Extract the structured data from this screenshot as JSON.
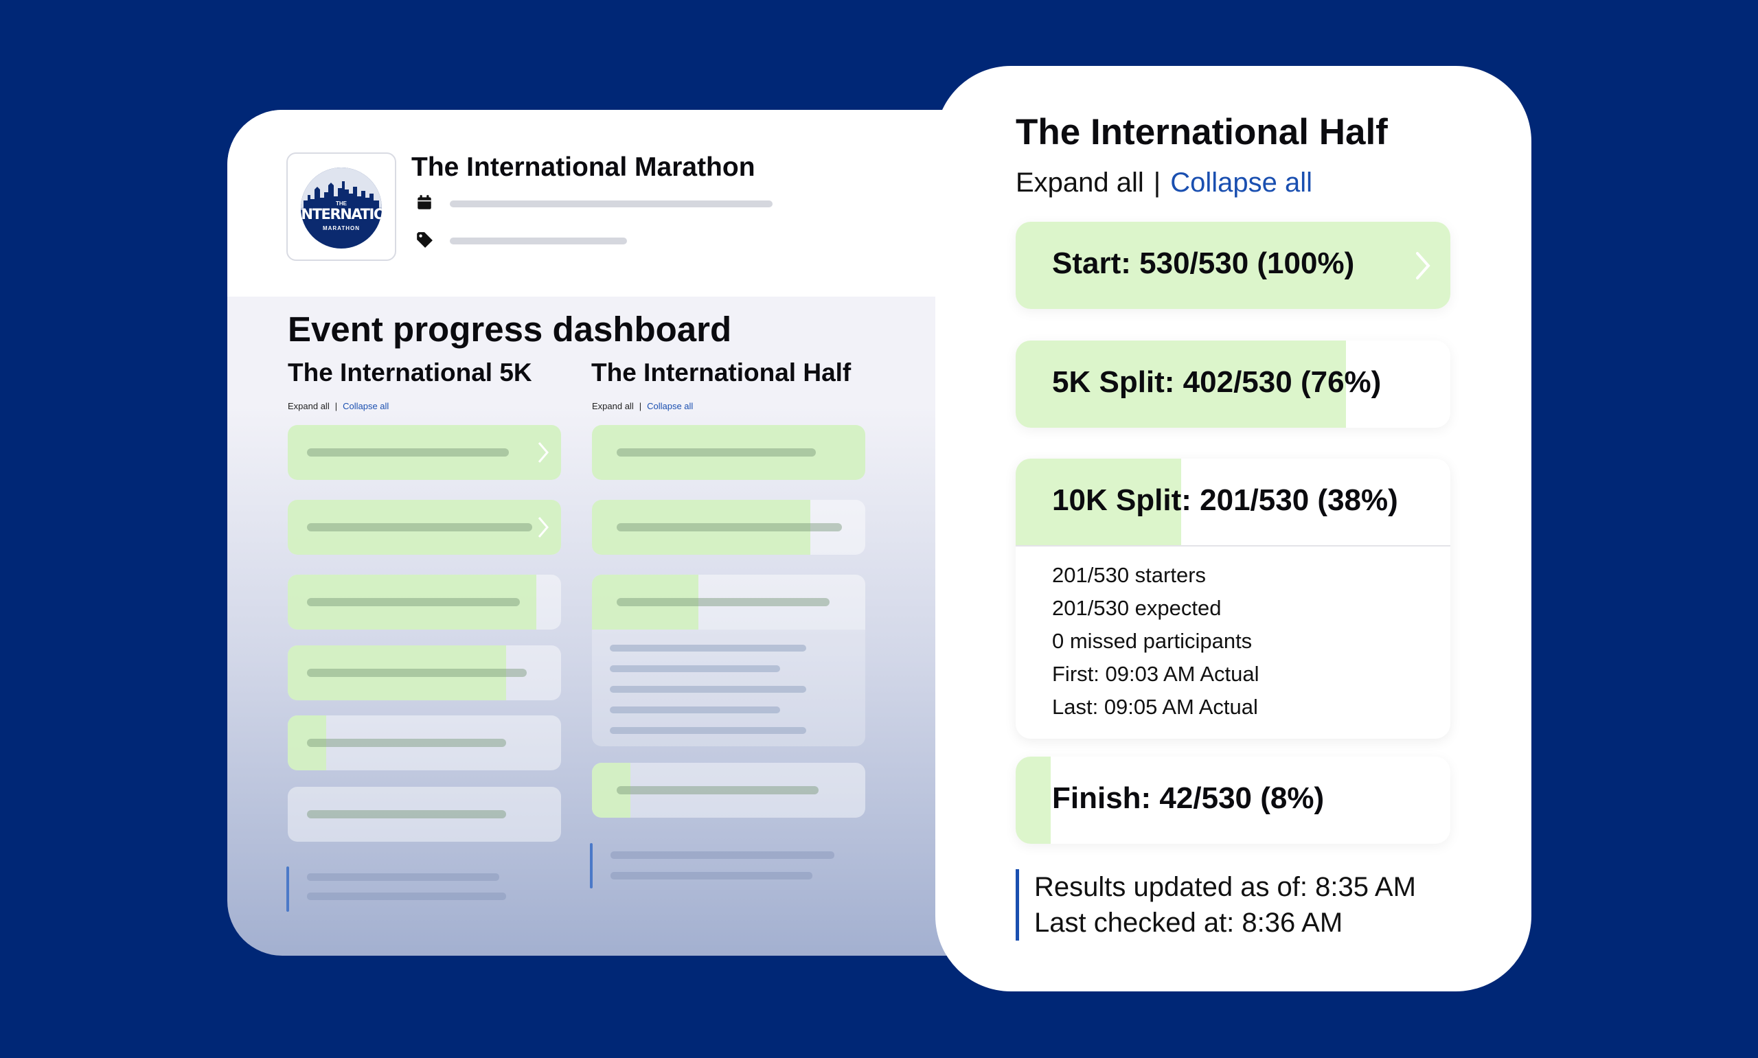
{
  "event": {
    "name": "The International Marathon",
    "logo": {
      "top_text": "THE",
      "main_text": "INTERNATIONAL",
      "bottom_text": "MARATHON"
    }
  },
  "dashboard": {
    "title": "Event progress dashboard",
    "races": [
      {
        "name": "The International 5K",
        "expand_label": "Expand all",
        "separator": "|",
        "collapse_label": "Collapse all"
      },
      {
        "name": "The International Half",
        "expand_label": "Expand all",
        "separator": "|",
        "collapse_label": "Collapse all"
      }
    ]
  },
  "detail_panel": {
    "title": "The International Half",
    "expand_label": "Expand all",
    "separator": "|",
    "collapse_label": "Collapse all",
    "checkpoints": [
      {
        "label": "Start: 530/530 (100%)",
        "progress_percent": 100
      },
      {
        "label": "5K Split: 402/530 (76%)",
        "progress_percent": 76
      },
      {
        "label": "10K Split: 201/530 (38%)",
        "progress_percent": 38,
        "details": [
          "201/530 starters",
          "201/530 expected",
          "0 missed participants",
          "First: 09:03 AM Actual",
          "Last: 09:05 AM Actual"
        ]
      },
      {
        "label": "Finish: 42/530 (8%)",
        "progress_percent": 8
      }
    ],
    "results_updated": "Results updated as of: 8:35 AM",
    "last_checked": "Last checked at: 8:36 AM"
  },
  "colors": {
    "background": "#002776",
    "progress_fill": "#dcf5cb",
    "link": "#1a4fb0",
    "accent_bar": "#1a4fb0"
  },
  "icons": [
    "calendar-icon",
    "tag-icon",
    "chevron-right-icon"
  ]
}
